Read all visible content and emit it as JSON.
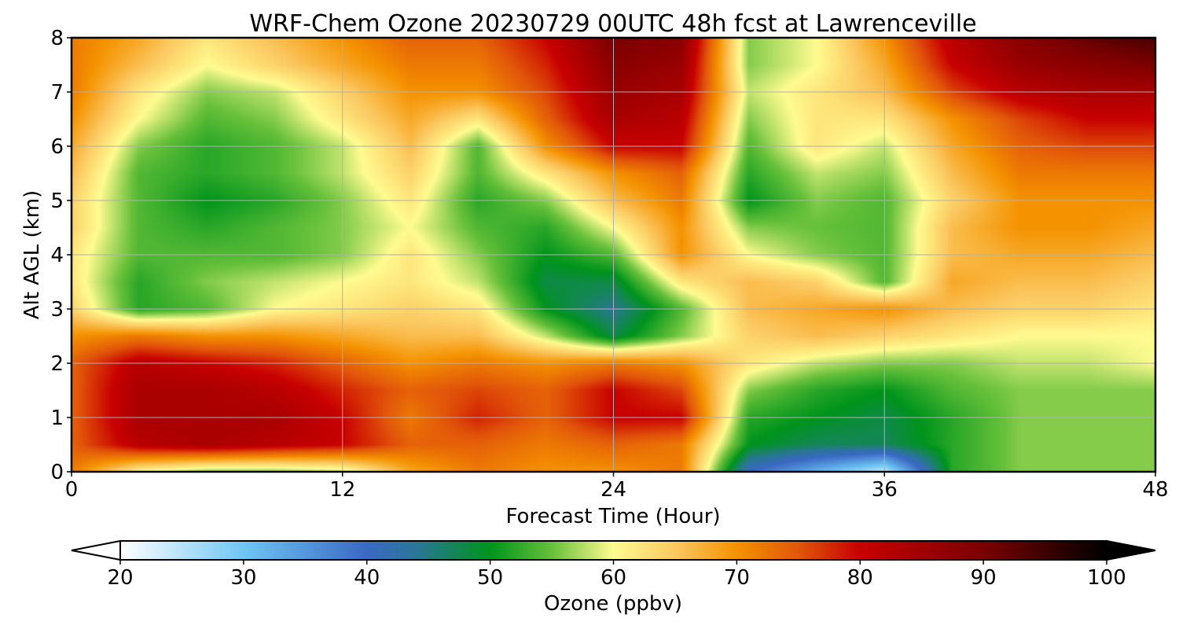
{
  "chart_data": {
    "type": "heatmap",
    "title": "WRF-Chem Ozone  20230729 00UTC 48h fcst at Lawrenceville",
    "xlabel": "Forecast Time (Hour)",
    "ylabel": "Alt AGL (km)",
    "xlim": [
      0,
      48
    ],
    "ylim": [
      0,
      8
    ],
    "xticks": [
      0,
      12,
      24,
      36,
      48
    ],
    "yticks": [
      0,
      1,
      2,
      3,
      4,
      5,
      6,
      7,
      8
    ],
    "grid": true,
    "x": [
      0,
      3,
      6,
      9,
      12,
      15,
      18,
      21,
      24,
      27,
      30,
      33,
      36,
      39,
      42,
      45,
      48
    ],
    "y": [
      0,
      0.5,
      1,
      1.5,
      2,
      2.5,
      3,
      3.5,
      4,
      4.5,
      5,
      5.5,
      6,
      6.5,
      7,
      7.5,
      8
    ],
    "z": [
      [
        72,
        60,
        56,
        56,
        58,
        68,
        72,
        70,
        70,
        72,
        40,
        32,
        24,
        52,
        56,
        56,
        56
      ],
      [
        74,
        82,
        84,
        82,
        80,
        74,
        74,
        72,
        74,
        72,
        50,
        47,
        47,
        52,
        56,
        56,
        56
      ],
      [
        74,
        84,
        84,
        84,
        80,
        72,
        78,
        74,
        80,
        80,
        52,
        50,
        48,
        52,
        56,
        56,
        56
      ],
      [
        74,
        84,
        84,
        82,
        78,
        74,
        76,
        74,
        80,
        76,
        56,
        52,
        50,
        54,
        56,
        56,
        56
      ],
      [
        74,
        82,
        80,
        78,
        74,
        70,
        72,
        70,
        72,
        70,
        62,
        58,
        56,
        56,
        58,
        58,
        60
      ],
      [
        70,
        72,
        70,
        70,
        68,
        66,
        66,
        58,
        48,
        56,
        64,
        66,
        64,
        62,
        60,
        60,
        60
      ],
      [
        64,
        52,
        54,
        60,
        62,
        64,
        62,
        50,
        44,
        54,
        66,
        68,
        70,
        66,
        64,
        64,
        62
      ],
      [
        62,
        52,
        56,
        58,
        60,
        62,
        58,
        48,
        48,
        62,
        66,
        64,
        54,
        68,
        66,
        66,
        64
      ],
      [
        62,
        54,
        54,
        54,
        56,
        62,
        56,
        50,
        54,
        70,
        60,
        56,
        54,
        66,
        68,
        68,
        66
      ],
      [
        64,
        54,
        52,
        54,
        56,
        60,
        54,
        52,
        60,
        70,
        56,
        55,
        54,
        66,
        70,
        70,
        68
      ],
      [
        64,
        54,
        50,
        52,
        56,
        62,
        52,
        56,
        66,
        72,
        50,
        56,
        54,
        64,
        70,
        70,
        70
      ],
      [
        66,
        54,
        52,
        54,
        58,
        64,
        54,
        62,
        70,
        74,
        52,
        58,
        56,
        66,
        72,
        72,
        72
      ],
      [
        68,
        56,
        52,
        54,
        58,
        66,
        54,
        70,
        80,
        80,
        54,
        62,
        58,
        68,
        74,
        76,
        76
      ],
      [
        70,
        60,
        54,
        56,
        62,
        68,
        62,
        74,
        84,
        82,
        56,
        62,
        62,
        70,
        76,
        80,
        80
      ],
      [
        72,
        62,
        56,
        58,
        64,
        70,
        70,
        76,
        86,
        84,
        58,
        62,
        66,
        76,
        82,
        84,
        84
      ],
      [
        72,
        66,
        60,
        64,
        68,
        72,
        72,
        78,
        88,
        86,
        56,
        60,
        68,
        80,
        86,
        88,
        90
      ],
      [
        72,
        68,
        62,
        66,
        70,
        74,
        74,
        80,
        90,
        88,
        56,
        60,
        70,
        82,
        88,
        92,
        94
      ]
    ],
    "colorbar": {
      "label": "Ozone  (ppbv)",
      "min": 20,
      "max": 100,
      "ticks": [
        20,
        30,
        40,
        50,
        60,
        70,
        80,
        90,
        100
      ],
      "extend": "both",
      "stops": [
        {
          "v": 20,
          "c": "#ffffff"
        },
        {
          "v": 30,
          "c": "#6fc6f4"
        },
        {
          "v": 40,
          "c": "#3a68c4"
        },
        {
          "v": 44,
          "c": "#2a7696"
        },
        {
          "v": 50,
          "c": "#00941c"
        },
        {
          "v": 55,
          "c": "#66c03a"
        },
        {
          "v": 60,
          "c": "#fffb90"
        },
        {
          "v": 65,
          "c": "#fbc860"
        },
        {
          "v": 70,
          "c": "#f49200"
        },
        {
          "v": 75,
          "c": "#e2560a"
        },
        {
          "v": 80,
          "c": "#c80000"
        },
        {
          "v": 90,
          "c": "#7a0000"
        },
        {
          "v": 100,
          "c": "#000000"
        }
      ]
    }
  }
}
